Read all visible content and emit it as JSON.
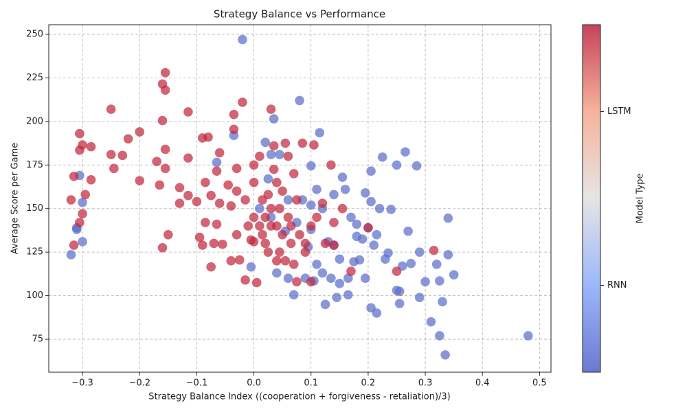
{
  "chart_data": {
    "type": "scatter",
    "title": "Strategy Balance vs Performance",
    "xlabel": "Strategy Balance Index ((cooperation + forgiveness - retaliation)/3)",
    "ylabel": "Average Score per Game",
    "xlim": [
      -0.359,
      0.52
    ],
    "ylim": [
      56.1,
      255.5
    ],
    "xticks": [
      {
        "value": -0.3,
        "label": "−0.3"
      },
      {
        "value": -0.2,
        "label": "−0.2"
      },
      {
        "value": -0.1,
        "label": "−0.1"
      },
      {
        "value": 0,
        "label": "0.0"
      },
      0.1,
      0.2,
      0.3,
      0.4,
      0.5
    ],
    "yticks": [
      75,
      100,
      125,
      150,
      175,
      200,
      225,
      250
    ],
    "grid": true,
    "colorbar": {
      "label": "Model Type",
      "clim": [
        -0.5,
        1.5
      ],
      "ticks": [
        {
          "value": 0,
          "label": "RNN"
        },
        {
          "value": 1,
          "label": "LSTM"
        }
      ]
    },
    "series": [
      {
        "color": "#5b6fc9",
        "x": [
          -0.32,
          -0.31,
          -0.305,
          -0.3,
          -0.3,
          -0.31,
          -0.065,
          -0.02,
          -0.035,
          -0.005,
          0.02,
          0.035,
          0.03,
          0.045,
          0.025,
          0.06,
          0.07,
          0.08,
          0.09,
          0.1,
          0.1,
          0.11,
          0.115,
          0.12,
          0.125,
          0.13,
          0.135,
          0.145,
          0.15,
          0.155,
          0.16,
          0.165,
          0.17,
          0.175,
          0.18,
          0.185,
          0.19,
          0.195,
          0.195,
          0.205,
          0.205,
          0.21,
          0.215,
          0.22,
          0.225,
          0.23,
          0.235,
          0.24,
          0.25,
          0.25,
          0.255,
          0.26,
          0.265,
          0.27,
          0.275,
          0.285,
          0.29,
          0.29,
          0.3,
          0.31,
          0.32,
          0.325,
          0.33,
          0.335,
          0.34,
          0.34,
          0.35,
          0.48,
          0.055,
          0.085,
          0.14,
          0.205,
          0.165,
          0.15,
          0.06,
          0.04,
          0.12,
          0.18,
          0.2,
          0.01,
          0.03,
          0.075,
          0.095,
          0.14,
          0.11,
          0.105,
          0.1,
          0.215,
          0.255,
          0.325
        ],
        "y": [
          123.5,
          139,
          169,
          131,
          153.5,
          138,
          176.5,
          247,
          192,
          116.5,
          188,
          201.5,
          181,
          181,
          167,
          155,
          100.5,
          212,
          110,
          174.5,
          138,
          161,
          193.5,
          150,
          95,
          131,
          110,
          99,
          121,
          168,
          161,
          100.5,
          145,
          119.5,
          134,
          120.5,
          132.5,
          159,
          110,
          171.5,
          93,
          129,
          90,
          150,
          179.5,
          121,
          124.5,
          149.5,
          175,
          103,
          95.5,
          117,
          182.5,
          137,
          118.5,
          174.5,
          99,
          125,
          108,
          85,
          118,
          77,
          96.5,
          66,
          123.5,
          144.5,
          112,
          77,
          137,
          155,
          158,
          154,
          110,
          107,
          110,
          113,
          113,
          141,
          139,
          150,
          145,
          142,
          128,
          129,
          118,
          108.5,
          152,
          135,
          102.5,
          108.5
        ]
      },
      {
        "color": "#c0283f",
        "x": [
          -0.315,
          -0.32,
          -0.315,
          -0.305,
          -0.305,
          -0.3,
          -0.295,
          -0.3,
          -0.305,
          -0.285,
          -0.285,
          -0.25,
          -0.25,
          -0.245,
          -0.23,
          -0.22,
          -0.2,
          -0.2,
          -0.17,
          -0.165,
          -0.16,
          -0.16,
          -0.155,
          -0.155,
          -0.155,
          -0.155,
          -0.16,
          -0.15,
          -0.13,
          -0.13,
          -0.115,
          -0.115,
          -0.115,
          -0.1,
          -0.095,
          -0.09,
          -0.085,
          -0.085,
          -0.09,
          -0.08,
          -0.075,
          -0.075,
          -0.07,
          -0.065,
          -0.06,
          -0.06,
          -0.065,
          -0.055,
          -0.045,
          -0.04,
          -0.04,
          -0.035,
          -0.035,
          -0.03,
          -0.03,
          -0.03,
          -0.025,
          -0.02,
          -0.015,
          -0.015,
          0,
          0,
          0,
          0,
          0.005,
          0.01,
          0.01,
          0.015,
          0.02,
          0.025,
          0.03,
          0.03,
          0.035,
          0.035,
          0.04,
          0.04,
          0.045,
          0.05,
          0.055,
          0.06,
          0.06,
          0.065,
          0.07,
          0.07,
          0.075,
          0.08,
          0.085,
          0.09,
          0.1,
          0.105,
          0.11,
          0.12,
          0.125,
          0.135,
          0.14,
          0.14,
          0.155,
          0.17,
          0.2,
          0.25,
          0.315,
          0.02,
          0.05,
          0.03,
          -0.01,
          0.015,
          0.045,
          0.065,
          0.025,
          0.055,
          0.04,
          -0.005,
          0.075,
          0.09,
          0.1
        ],
        "y": [
          168.5,
          155,
          129,
          183.5,
          193,
          186.5,
          158,
          147,
          142,
          185.5,
          166.5,
          207,
          181,
          173,
          180.5,
          190,
          194,
          166,
          177,
          163.5,
          221.5,
          200.5,
          228,
          218,
          184,
          173,
          127.5,
          135,
          162,
          153,
          205.5,
          179,
          157.5,
          154,
          133.5,
          190.5,
          165,
          142,
          129,
          191,
          157.5,
          116.5,
          130,
          171.5,
          182,
          153,
          141,
          129.5,
          163.5,
          151.5,
          120,
          204,
          195.5,
          173,
          160,
          135,
          120.5,
          211,
          109,
          155,
          175,
          165,
          145,
          131,
          107.5,
          180,
          140,
          135,
          130,
          158,
          207,
          150,
          172.5,
          186,
          140,
          120,
          125,
          160,
          187.5,
          180,
          145,
          130,
          170,
          118,
          108,
          135,
          187.5,
          125,
          108,
          186.5,
          145,
          153,
          130,
          175,
          142,
          129,
          150,
          114,
          139,
          114,
          126,
          145,
          135,
          140,
          140,
          155,
          150,
          140,
          125,
          120,
          165,
          132,
          155,
          130,
          140
        ]
      }
    ]
  }
}
